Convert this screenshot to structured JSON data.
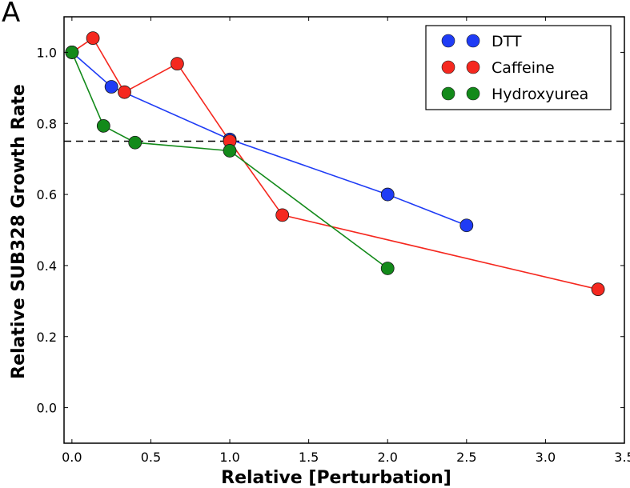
{
  "panel_label": "A",
  "chart_data": {
    "type": "line",
    "title": "",
    "xlabel": "Relative [Perturbation]",
    "ylabel": "Relative SUB328 Growth Rate",
    "xlim": [
      -0.05,
      3.5
    ],
    "ylim": [
      -0.1,
      1.1
    ],
    "xticks": [
      0.0,
      0.5,
      1.0,
      1.5,
      2.0,
      2.5,
      3.0,
      3.5
    ],
    "xtick_labels": [
      "0.0",
      "0.5",
      "1.0",
      "1.5",
      "2.0",
      "2.5",
      "3.0",
      "3.5"
    ],
    "yticks": [
      0.0,
      0.2,
      0.4,
      0.6,
      0.8,
      1.0
    ],
    "ytick_labels": [
      "0.0",
      "0.2",
      "0.4",
      "0.6",
      "0.8",
      "1.0"
    ],
    "grid": false,
    "legend_position": "top-right",
    "reference_line": {
      "y": 0.75,
      "style": "dashed",
      "color": "#000000"
    },
    "series": [
      {
        "name": "DTT",
        "color": "#1f3cf5",
        "x": [
          0.0,
          0.25,
          1.0,
          2.0,
          2.5
        ],
        "y": [
          1.0,
          0.903,
          0.755,
          0.6,
          0.513
        ]
      },
      {
        "name": "Caffeine",
        "color": "#f5281f",
        "x": [
          0.0,
          0.133,
          0.333,
          0.667,
          1.0,
          1.333,
          3.333
        ],
        "y": [
          1.0,
          1.04,
          0.888,
          0.968,
          0.75,
          0.542,
          0.333
        ]
      },
      {
        "name": "Hydroxyurea",
        "color": "#138a1a",
        "x": [
          0.0,
          0.2,
          0.4,
          1.0,
          2.0
        ],
        "y": [
          1.0,
          0.793,
          0.746,
          0.723,
          0.392
        ]
      }
    ]
  }
}
